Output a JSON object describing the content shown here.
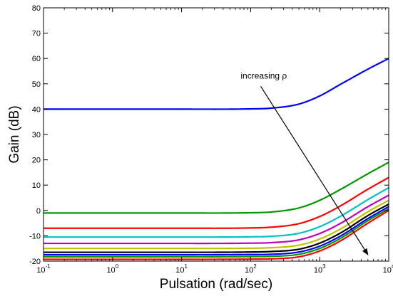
{
  "chart_data": {
    "type": "line",
    "title": "",
    "xlabel": "Pulsation  (rad/sec)",
    "ylabel": "Gain (dB)",
    "xscale": "log",
    "xlim": [
      0.1,
      10000
    ],
    "ylim": [
      -20,
      80
    ],
    "grid": false,
    "legend": "none",
    "x_ticks": [
      {
        "value": 0.1,
        "base": "10",
        "exp": "-1"
      },
      {
        "value": 1,
        "base": "10",
        "exp": "0"
      },
      {
        "value": 10,
        "base": "10",
        "exp": "1"
      },
      {
        "value": 100,
        "base": "10",
        "exp": "2"
      },
      {
        "value": 1000,
        "base": "10",
        "exp": "3"
      },
      {
        "value": 10000,
        "base": "10",
        "exp": "4"
      }
    ],
    "y_ticks": [
      {
        "value": -20,
        "label": "-20"
      },
      {
        "value": -10,
        "label": "-10"
      },
      {
        "value": 0,
        "label": "0"
      },
      {
        "value": 10,
        "label": "10"
      },
      {
        "value": 20,
        "label": "20"
      },
      {
        "value": 30,
        "label": "30"
      },
      {
        "value": 40,
        "label": "40"
      },
      {
        "value": 50,
        "label": "50"
      },
      {
        "value": 60,
        "label": "60"
      },
      {
        "value": 70,
        "label": "70"
      },
      {
        "value": 80,
        "label": "80"
      }
    ],
    "series": [
      {
        "color": "#0000ff",
        "x": [
          0.1,
          1,
          10,
          100,
          200,
          500,
          1000,
          2000,
          5000,
          10000
        ],
        "y": [
          40,
          40,
          40,
          40.1,
          40.4,
          42,
          45.2,
          49.8,
          55.8,
          60
        ]
      },
      {
        "color": "#009900",
        "x": [
          0.1,
          1,
          10,
          100,
          200,
          500,
          1000,
          2000,
          5000,
          10000
        ],
        "y": [
          -1,
          -1,
          -1,
          -0.9,
          -0.6,
          1.0,
          4.0,
          8.3,
          14.5,
          19
        ]
      },
      {
        "color": "#ff0000",
        "x": [
          0.1,
          1,
          10,
          100,
          200,
          500,
          1000,
          2000,
          5000,
          10000
        ],
        "y": [
          -7,
          -7,
          -7,
          -6.9,
          -6.6,
          -5.2,
          -2.4,
          1.8,
          8.4,
          13
        ]
      },
      {
        "color": "#00c0c0",
        "x": [
          0.1,
          1,
          10,
          100,
          200,
          500,
          1000,
          2000,
          5000,
          10000
        ],
        "y": [
          -10.5,
          -10.5,
          -10.5,
          -10.4,
          -10.2,
          -9.0,
          -6.4,
          -2.3,
          4.3,
          9
        ]
      },
      {
        "color": "#c000c0",
        "x": [
          0.1,
          1,
          10,
          100,
          200,
          500,
          1000,
          2000,
          5000,
          10000
        ],
        "y": [
          -13,
          -13,
          -13,
          -12.9,
          -12.7,
          -11.6,
          -9.1,
          -5.1,
          1.5,
          6
        ]
      },
      {
        "color": "#c0c000",
        "x": [
          0.1,
          1,
          10,
          100,
          200,
          500,
          1000,
          2000,
          5000,
          10000
        ],
        "y": [
          -15,
          -15,
          -15,
          -14.9,
          -14.7,
          -13.7,
          -11.3,
          -7.3,
          -0.5,
          4
        ]
      },
      {
        "color": "#000000",
        "x": [
          0.1,
          1,
          10,
          100,
          200,
          500,
          1000,
          2000,
          5000,
          10000
        ],
        "y": [
          -16.5,
          -16.5,
          -16.5,
          -16.4,
          -16.2,
          -15.3,
          -12.9,
          -8.9,
          -2.0,
          2.5
        ]
      },
      {
        "color": "#0000ff",
        "x": [
          0.1,
          1,
          10,
          100,
          200,
          500,
          1000,
          2000,
          5000,
          10000
        ],
        "y": [
          -17.5,
          -17.5,
          -17.5,
          -17.4,
          -17.3,
          -16.4,
          -14.1,
          -10.1,
          -3.2,
          1.5
        ]
      },
      {
        "color": "#009900",
        "x": [
          0.1,
          1,
          10,
          100,
          200,
          500,
          1000,
          2000,
          5000,
          10000
        ],
        "y": [
          -18.3,
          -18.3,
          -18.3,
          -18.2,
          -18.1,
          -17.3,
          -15.0,
          -11.0,
          -4.0,
          0.7
        ]
      },
      {
        "color": "#ff0000",
        "x": [
          0.1,
          1,
          10,
          100,
          200,
          500,
          1000,
          2000,
          5000,
          10000
        ],
        "y": [
          -19.3,
          -19.3,
          -19.3,
          -19.2,
          -19.1,
          -18.3,
          -16.0,
          -12.0,
          -5.0,
          0
        ]
      }
    ],
    "annotations": [
      {
        "text": "increasing ρ",
        "text_x": 155,
        "text_y": 52,
        "arrow_from": [
          140,
          49
        ],
        "arrow_to": [
          5000,
          -17.5
        ]
      }
    ]
  }
}
